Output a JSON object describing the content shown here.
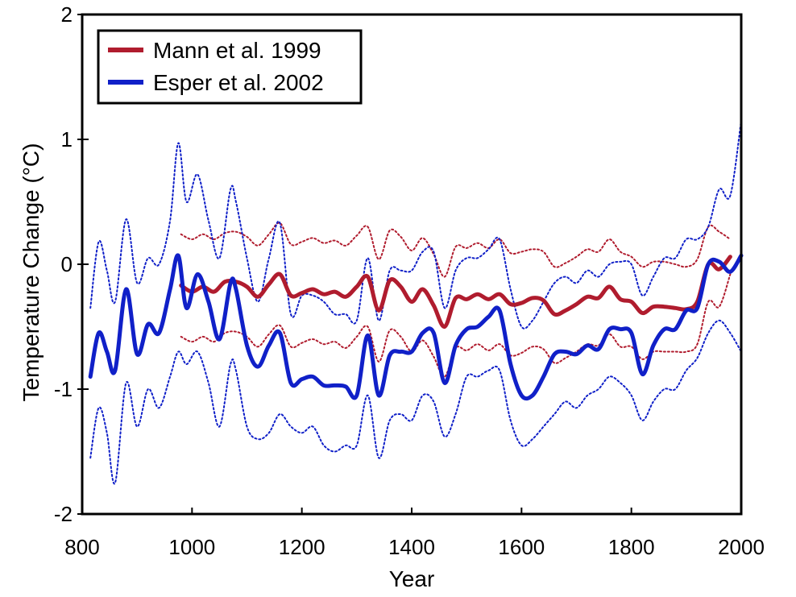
{
  "chart_data": {
    "type": "line",
    "xlabel": "Year",
    "ylabel": "Temperature Change (°C)",
    "xlim": [
      800,
      2000
    ],
    "ylim": [
      -2,
      2
    ],
    "xticks": [
      800,
      1000,
      1200,
      1400,
      1600,
      1800,
      2000
    ],
    "yticks": [
      -2,
      -1,
      0,
      1,
      2
    ],
    "xtick_labels": [
      "800",
      "1000",
      "1200",
      "1400",
      "1600",
      "1800",
      "2000"
    ],
    "ytick_labels": [
      "-2",
      "-1",
      "0",
      "1",
      "2"
    ],
    "grid": false,
    "legend_position": "top-left",
    "series": [
      {
        "name": "Mann et al. 1999",
        "color": "#b01c2e",
        "style": "solid",
        "x": [
          980,
          1000,
          1020,
          1040,
          1060,
          1080,
          1100,
          1120,
          1140,
          1160,
          1180,
          1200,
          1220,
          1240,
          1260,
          1280,
          1300,
          1320,
          1340,
          1360,
          1380,
          1400,
          1420,
          1440,
          1460,
          1480,
          1500,
          1520,
          1540,
          1560,
          1580,
          1600,
          1620,
          1640,
          1660,
          1680,
          1700,
          1720,
          1740,
          1760,
          1780,
          1800,
          1820,
          1840,
          1860,
          1880,
          1900,
          1920,
          1940,
          1960,
          1980
        ],
        "y": [
          -0.17,
          -0.22,
          -0.18,
          -0.22,
          -0.14,
          -0.14,
          -0.18,
          -0.26,
          -0.16,
          -0.08,
          -0.25,
          -0.23,
          -0.2,
          -0.24,
          -0.22,
          -0.26,
          -0.18,
          -0.1,
          -0.37,
          -0.13,
          -0.18,
          -0.3,
          -0.2,
          -0.33,
          -0.5,
          -0.27,
          -0.28,
          -0.24,
          -0.28,
          -0.24,
          -0.32,
          -0.31,
          -0.27,
          -0.29,
          -0.4,
          -0.37,
          -0.32,
          -0.26,
          -0.27,
          -0.18,
          -0.28,
          -0.3,
          -0.39,
          -0.34,
          -0.34,
          -0.35,
          -0.36,
          -0.3,
          0.0,
          -0.04,
          0.06
        ]
      },
      {
        "name": "",
        "color": "#b01c2e",
        "style": "dotted",
        "x": [
          980,
          1000,
          1020,
          1040,
          1060,
          1080,
          1100,
          1120,
          1140,
          1160,
          1180,
          1200,
          1220,
          1240,
          1260,
          1280,
          1300,
          1320,
          1340,
          1360,
          1380,
          1400,
          1420,
          1440,
          1460,
          1480,
          1500,
          1520,
          1540,
          1560,
          1580,
          1600,
          1620,
          1640,
          1660,
          1680,
          1700,
          1720,
          1740,
          1760,
          1780,
          1800,
          1820,
          1840,
          1860,
          1880,
          1900,
          1920,
          1940,
          1960,
          1980
        ],
        "y": [
          0.24,
          0.2,
          0.24,
          0.2,
          0.25,
          0.26,
          0.22,
          0.15,
          0.24,
          0.33,
          0.16,
          0.18,
          0.21,
          0.17,
          0.19,
          0.15,
          0.23,
          0.3,
          0.04,
          0.27,
          0.22,
          0.11,
          0.21,
          0.08,
          -0.1,
          0.14,
          0.13,
          0.17,
          0.13,
          0.2,
          0.09,
          0.1,
          0.12,
          0.1,
          -0.02,
          0.01,
          0.06,
          0.12,
          0.1,
          0.2,
          0.1,
          0.06,
          -0.02,
          0.02,
          0.02,
          0.0,
          -0.02,
          0.04,
          0.3,
          0.26,
          0.2
        ]
      },
      {
        "name": "",
        "color": "#b01c2e",
        "style": "dotted",
        "x": [
          980,
          1000,
          1020,
          1040,
          1060,
          1080,
          1100,
          1120,
          1140,
          1160,
          1180,
          1200,
          1220,
          1240,
          1260,
          1280,
          1300,
          1320,
          1340,
          1360,
          1380,
          1400,
          1420,
          1440,
          1460,
          1480,
          1500,
          1520,
          1540,
          1560,
          1580,
          1600,
          1620,
          1640,
          1660,
          1680,
          1700,
          1720,
          1740,
          1760,
          1780,
          1800,
          1820,
          1840,
          1860,
          1880,
          1900,
          1920,
          1940,
          1960,
          1980
        ],
        "y": [
          -0.58,
          -0.62,
          -0.58,
          -0.62,
          -0.55,
          -0.54,
          -0.58,
          -0.66,
          -0.56,
          -0.49,
          -0.66,
          -0.63,
          -0.6,
          -0.64,
          -0.62,
          -0.67,
          -0.58,
          -0.5,
          -0.78,
          -0.53,
          -0.58,
          -0.7,
          -0.61,
          -0.74,
          -0.9,
          -0.67,
          -0.69,
          -0.64,
          -0.69,
          -0.64,
          -0.73,
          -0.71,
          -0.66,
          -0.68,
          -0.79,
          -0.75,
          -0.7,
          -0.64,
          -0.65,
          -0.56,
          -0.66,
          -0.66,
          -0.76,
          -0.7,
          -0.7,
          -0.7,
          -0.7,
          -0.64,
          -0.3,
          -0.34,
          -0.08
        ]
      },
      {
        "name": "Esper et al. 2002",
        "color": "#1020c8",
        "style": "solid",
        "x": [
          815,
          830,
          845,
          860,
          880,
          900,
          920,
          940,
          960,
          975,
          990,
          1010,
          1030,
          1050,
          1070,
          1080,
          1100,
          1120,
          1140,
          1160,
          1180,
          1200,
          1220,
          1240,
          1260,
          1280,
          1300,
          1320,
          1340,
          1360,
          1380,
          1400,
          1420,
          1440,
          1460,
          1480,
          1500,
          1520,
          1540,
          1560,
          1580,
          1600,
          1620,
          1640,
          1660,
          1680,
          1700,
          1720,
          1740,
          1760,
          1780,
          1800,
          1820,
          1840,
          1860,
          1880,
          1900,
          1920,
          1940,
          1960,
          1980,
          2000
        ],
        "y": [
          -0.9,
          -0.55,
          -0.7,
          -0.85,
          -0.2,
          -0.72,
          -0.48,
          -0.55,
          -0.2,
          0.07,
          -0.35,
          -0.08,
          -0.3,
          -0.6,
          -0.15,
          -0.2,
          -0.65,
          -0.82,
          -0.65,
          -0.55,
          -0.95,
          -0.92,
          -0.9,
          -0.97,
          -0.97,
          -0.98,
          -1.05,
          -0.57,
          -1.05,
          -0.73,
          -0.7,
          -0.7,
          -0.55,
          -0.55,
          -0.95,
          -0.65,
          -0.52,
          -0.5,
          -0.42,
          -0.37,
          -0.8,
          -1.05,
          -1.05,
          -0.9,
          -0.72,
          -0.7,
          -0.72,
          -0.65,
          -0.68,
          -0.52,
          -0.52,
          -0.55,
          -0.88,
          -0.65,
          -0.52,
          -0.52,
          -0.37,
          -0.35,
          0.0,
          0.02,
          -0.06,
          0.07
        ]
      },
      {
        "name": "",
        "color": "#1020c8",
        "style": "dotted",
        "x": [
          815,
          830,
          845,
          860,
          880,
          900,
          920,
          940,
          960,
          975,
          990,
          1010,
          1030,
          1050,
          1070,
          1080,
          1100,
          1120,
          1140,
          1160,
          1180,
          1200,
          1220,
          1240,
          1260,
          1280,
          1300,
          1320,
          1340,
          1360,
          1380,
          1400,
          1420,
          1440,
          1460,
          1480,
          1500,
          1520,
          1540,
          1560,
          1580,
          1600,
          1620,
          1640,
          1660,
          1680,
          1700,
          1720,
          1740,
          1760,
          1780,
          1800,
          1820,
          1840,
          1860,
          1880,
          1900,
          1920,
          1940,
          1960,
          1980,
          2000
        ],
        "y": [
          -0.35,
          0.18,
          -0.05,
          -0.3,
          0.36,
          -0.15,
          0.05,
          0.0,
          0.35,
          0.97,
          0.5,
          0.72,
          0.35,
          0.05,
          0.6,
          0.5,
          0.05,
          -0.3,
          0.05,
          0.33,
          -0.4,
          -0.25,
          -0.25,
          -0.3,
          -0.4,
          -0.4,
          -0.45,
          0.05,
          -0.45,
          -0.05,
          -0.05,
          -0.05,
          0.1,
          0.1,
          -0.35,
          -0.05,
          0.05,
          0.05,
          0.12,
          0.2,
          -0.2,
          -0.5,
          -0.45,
          -0.3,
          -0.15,
          -0.1,
          -0.15,
          -0.05,
          -0.1,
          0.0,
          0.02,
          0.0,
          -0.25,
          -0.1,
          0.05,
          0.05,
          0.2,
          0.2,
          0.3,
          0.6,
          0.55,
          1.15
        ]
      },
      {
        "name": "",
        "color": "#1020c8",
        "style": "dotted",
        "x": [
          815,
          830,
          845,
          860,
          880,
          900,
          920,
          940,
          960,
          975,
          990,
          1010,
          1030,
          1050,
          1070,
          1080,
          1100,
          1120,
          1140,
          1160,
          1180,
          1200,
          1220,
          1240,
          1260,
          1280,
          1300,
          1320,
          1340,
          1360,
          1380,
          1400,
          1420,
          1440,
          1460,
          1480,
          1500,
          1520,
          1540,
          1560,
          1580,
          1600,
          1620,
          1640,
          1660,
          1680,
          1700,
          1720,
          1740,
          1760,
          1780,
          1800,
          1820,
          1840,
          1860,
          1880,
          1900,
          1920,
          1940,
          1960,
          1980,
          2000
        ],
        "y": [
          -1.55,
          -1.15,
          -1.35,
          -1.75,
          -0.95,
          -1.3,
          -1.0,
          -1.15,
          -0.9,
          -0.7,
          -0.8,
          -0.7,
          -0.95,
          -1.3,
          -0.8,
          -0.85,
          -1.3,
          -1.4,
          -1.35,
          -1.2,
          -1.3,
          -1.35,
          -1.3,
          -1.45,
          -1.5,
          -1.45,
          -1.45,
          -1.05,
          -1.55,
          -1.25,
          -1.2,
          -1.25,
          -1.05,
          -1.1,
          -1.38,
          -1.2,
          -0.9,
          -0.9,
          -0.85,
          -0.85,
          -1.25,
          -1.45,
          -1.4,
          -1.3,
          -1.2,
          -1.1,
          -1.15,
          -1.05,
          -1.0,
          -0.9,
          -0.95,
          -1.05,
          -1.25,
          -1.1,
          -1.0,
          -1.0,
          -0.85,
          -0.75,
          -0.55,
          -0.45,
          -0.55,
          -0.7
        ]
      }
    ]
  }
}
